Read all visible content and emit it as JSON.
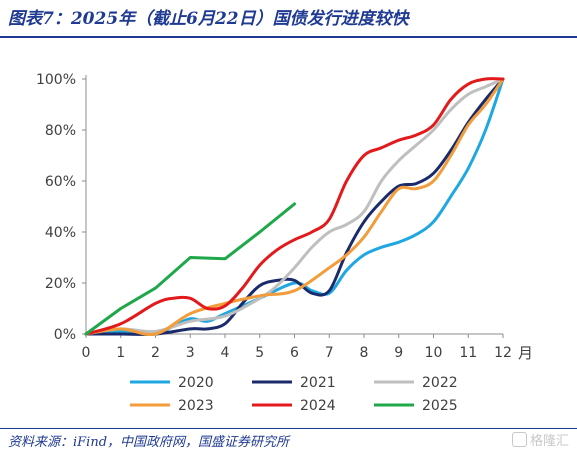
{
  "header": {
    "title": "图表7：2025年（截止6月22日）国债发行进度较快"
  },
  "footer": {
    "source": "资料来源：iFind，中国政府网，国盛证券研究所",
    "watermark": "格隆汇"
  },
  "chart_data": {
    "type": "line",
    "xlabel": "月",
    "ylabel": "",
    "x_ticks": [
      "0",
      "1",
      "2",
      "3",
      "4",
      "5",
      "6",
      "7",
      "8",
      "9",
      "10",
      "11",
      "12"
    ],
    "y_ticks": [
      "0%",
      "20%",
      "40%",
      "60%",
      "80%",
      "100%"
    ],
    "xlim": [
      0,
      12
    ],
    "ylim": [
      0,
      100
    ],
    "grid": false,
    "legend_position": "bottom",
    "series": [
      {
        "name": "2020",
        "color": "#1ea7e1",
        "x": [
          0,
          1,
          2,
          2.5,
          3,
          3.5,
          4,
          5,
          6,
          6.5,
          7,
          7.5,
          8,
          8.5,
          9,
          9.5,
          10,
          10.5,
          11,
          11.5,
          12
        ],
        "y": [
          0,
          1,
          0,
          3,
          6,
          5,
          8,
          14,
          20,
          17,
          16,
          25,
          31,
          34,
          36,
          39,
          44,
          54,
          65,
          80,
          100
        ]
      },
      {
        "name": "2021",
        "color": "#1b2a6b",
        "x": [
          0,
          1,
          2,
          3,
          3.5,
          4,
          4.5,
          5,
          5.5,
          6,
          6.5,
          7,
          7.5,
          8,
          8.5,
          9,
          9.5,
          10,
          10.5,
          11,
          11.5,
          12
        ],
        "y": [
          0,
          0,
          0,
          2,
          2,
          4,
          12,
          19,
          21,
          21,
          16,
          17,
          32,
          44,
          52,
          58,
          59,
          63,
          72,
          83,
          92,
          100
        ]
      },
      {
        "name": "2022",
        "color": "#bfbfbf",
        "x": [
          0,
          1,
          2,
          3,
          4,
          5,
          5.5,
          6,
          6.5,
          7,
          7.5,
          8,
          8.5,
          9,
          9.5,
          10,
          10.5,
          11,
          11.5,
          12
        ],
        "y": [
          0,
          2,
          1,
          5,
          7,
          14,
          19,
          26,
          34,
          40,
          43,
          48,
          60,
          68,
          74,
          80,
          88,
          94,
          97,
          100
        ]
      },
      {
        "name": "2023",
        "color": "#f39c3a",
        "x": [
          0,
          1,
          2,
          3,
          4,
          5,
          6,
          7,
          7.5,
          8,
          8.5,
          9,
          9.5,
          10,
          10.5,
          11,
          11.5,
          12
        ],
        "y": [
          0,
          2,
          0,
          8,
          12,
          15,
          17,
          26,
          31,
          38,
          48,
          57,
          57,
          60,
          70,
          82,
          90,
          100
        ]
      },
      {
        "name": "2024",
        "color": "#e31a1c",
        "x": [
          0,
          1,
          2,
          2.5,
          3,
          3.5,
          4,
          4.5,
          5,
          5.5,
          6,
          6.5,
          7,
          7.5,
          8,
          8.5,
          9,
          9.5,
          10,
          10.5,
          11,
          11.5,
          12
        ],
        "y": [
          0,
          4,
          12,
          14,
          14,
          10,
          11,
          18,
          27,
          33,
          37,
          40,
          45,
          60,
          70,
          73,
          76,
          78,
          82,
          92,
          98,
          100,
          100
        ]
      },
      {
        "name": "2025",
        "color": "#1fa84a",
        "x": [
          0,
          1,
          2,
          3,
          4,
          5,
          6
        ],
        "y": [
          0,
          10,
          18,
          30,
          29.5,
          40,
          51
        ]
      }
    ]
  }
}
